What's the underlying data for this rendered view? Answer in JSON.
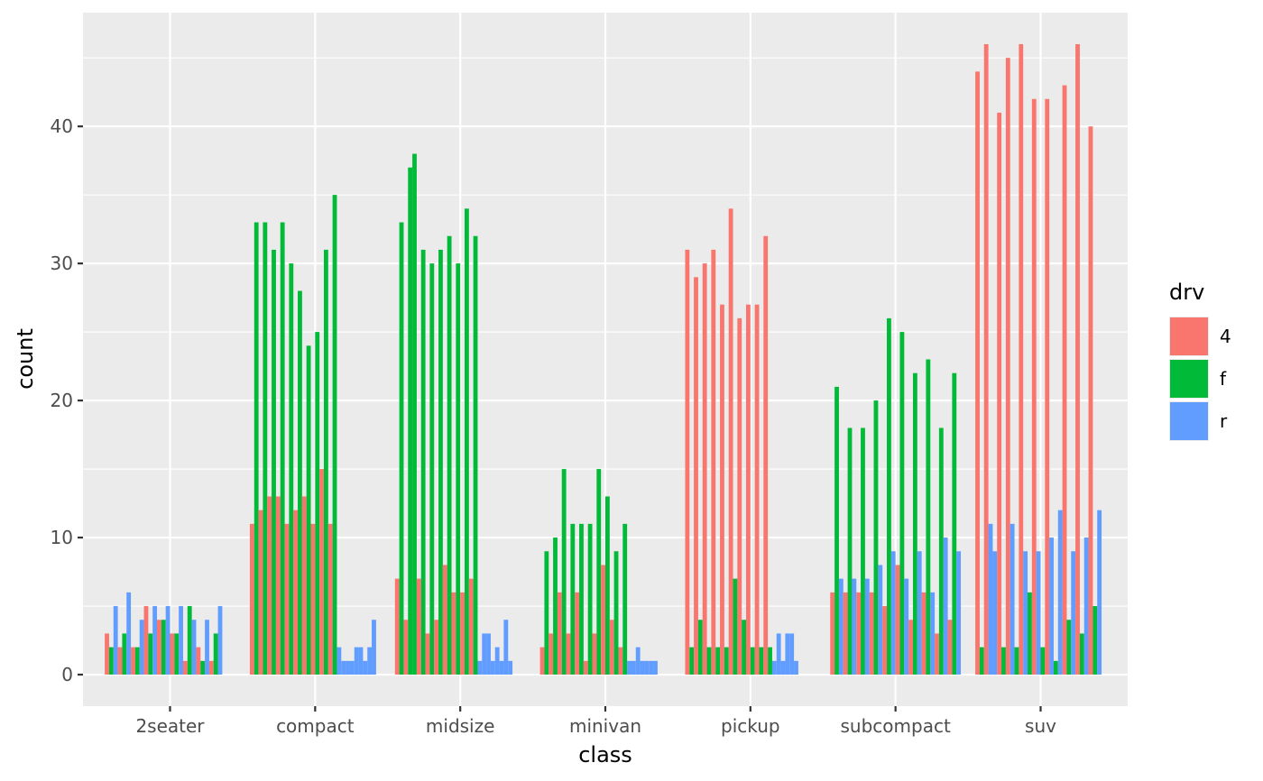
{
  "chart_data": {
    "type": "bar",
    "xlabel": "class",
    "ylabel": "count",
    "ylim": [
      -2.3,
      48.3
    ],
    "y_ticks": [
      0,
      10,
      20,
      30,
      40
    ],
    "grid": true,
    "legend_placement": "right",
    "legend": {
      "title": "drv",
      "entries": [
        {
          "key": "4",
          "color": "#F8766D"
        },
        {
          "key": "f",
          "color": "#00BA38"
        },
        {
          "key": "r",
          "color": "#619CFF"
        }
      ]
    },
    "categories": [
      "2seater",
      "compact",
      "midsize",
      "minivan",
      "pickup",
      "subcompact",
      "suv"
    ],
    "bars_per_category": 30,
    "groups": [
      {
        "category": "2seater",
        "bars": [
          {
            "drv": "4",
            "value": 3
          },
          {
            "drv": "f",
            "value": 2
          },
          {
            "drv": "r",
            "value": 5
          },
          {
            "drv": "4",
            "value": 2
          },
          {
            "drv": "f",
            "value": 3
          },
          {
            "drv": "r",
            "value": 6
          },
          {
            "drv": "4",
            "value": 2
          },
          {
            "drv": "f",
            "value": 2
          },
          {
            "drv": "r",
            "value": 4
          },
          {
            "drv": "4",
            "value": 5
          },
          {
            "drv": "f",
            "value": 3
          },
          {
            "drv": "r",
            "value": 5
          },
          {
            "drv": "4",
            "value": 4
          },
          {
            "drv": "f",
            "value": 4
          },
          {
            "drv": "r",
            "value": 5
          },
          {
            "drv": "4",
            "value": 3
          },
          {
            "drv": "f",
            "value": 3
          },
          {
            "drv": "r",
            "value": 5
          },
          {
            "drv": "4",
            "value": 1
          },
          {
            "drv": "f",
            "value": 5
          },
          {
            "drv": "r",
            "value": 4
          },
          {
            "drv": "4",
            "value": 2
          },
          {
            "drv": "f",
            "value": 1
          },
          {
            "drv": "r",
            "value": 4
          },
          {
            "drv": "4",
            "value": 1
          },
          {
            "drv": "f",
            "value": 3
          },
          {
            "drv": "r",
            "value": 5
          }
        ]
      },
      {
        "category": "compact",
        "bars": [
          {
            "drv": "4",
            "value": 11
          },
          {
            "drv": "f",
            "value": 33
          },
          {
            "drv": "4",
            "value": 12
          },
          {
            "drv": "f",
            "value": 33
          },
          {
            "drv": "4",
            "value": 13
          },
          {
            "drv": "f",
            "value": 31
          },
          {
            "drv": "4",
            "value": 13
          },
          {
            "drv": "f",
            "value": 33
          },
          {
            "drv": "4",
            "value": 11
          },
          {
            "drv": "f",
            "value": 30
          },
          {
            "drv": "4",
            "value": 12
          },
          {
            "drv": "f",
            "value": 28
          },
          {
            "drv": "4",
            "value": 13
          },
          {
            "drv": "f",
            "value": 24
          },
          {
            "drv": "4",
            "value": 11
          },
          {
            "drv": "f",
            "value": 25
          },
          {
            "drv": "4",
            "value": 15
          },
          {
            "drv": "f",
            "value": 31
          },
          {
            "drv": "4",
            "value": 11
          },
          {
            "drv": "f",
            "value": 35
          },
          {
            "drv": "r",
            "value": 2
          },
          {
            "drv": "r",
            "value": 1
          },
          {
            "drv": "r",
            "value": 1
          },
          {
            "drv": "r",
            "value": 1
          },
          {
            "drv": "r",
            "value": 2
          },
          {
            "drv": "r",
            "value": 2
          },
          {
            "drv": "r",
            "value": 1
          },
          {
            "drv": "r",
            "value": 2
          },
          {
            "drv": "r",
            "value": 4
          }
        ]
      },
      {
        "category": "midsize",
        "bars": [
          {
            "drv": "4",
            "value": 7
          },
          {
            "drv": "f",
            "value": 33
          },
          {
            "drv": "4",
            "value": 4
          },
          {
            "drv": "f",
            "value": 37
          },
          {
            "drv": "f",
            "value": 38
          },
          {
            "drv": "4",
            "value": 7
          },
          {
            "drv": "f",
            "value": 31
          },
          {
            "drv": "4",
            "value": 3
          },
          {
            "drv": "f",
            "value": 30
          },
          {
            "drv": "4",
            "value": 4
          },
          {
            "drv": "f",
            "value": 31
          },
          {
            "drv": "4",
            "value": 8
          },
          {
            "drv": "f",
            "value": 32
          },
          {
            "drv": "4",
            "value": 6
          },
          {
            "drv": "f",
            "value": 30
          },
          {
            "drv": "4",
            "value": 6
          },
          {
            "drv": "f",
            "value": 34
          },
          {
            "drv": "4",
            "value": 7
          },
          {
            "drv": "f",
            "value": 32
          },
          {
            "drv": "r",
            "value": 1
          },
          {
            "drv": "r",
            "value": 3
          },
          {
            "drv": "r",
            "value": 3
          },
          {
            "drv": "r",
            "value": 1
          },
          {
            "drv": "r",
            "value": 2
          },
          {
            "drv": "r",
            "value": 1
          },
          {
            "drv": "r",
            "value": 4
          },
          {
            "drv": "r",
            "value": 1
          }
        ]
      },
      {
        "category": "minivan",
        "bars": [
          {
            "drv": "4",
            "value": 2
          },
          {
            "drv": "f",
            "value": 9
          },
          {
            "drv": "4",
            "value": 3
          },
          {
            "drv": "f",
            "value": 10
          },
          {
            "drv": "4",
            "value": 6
          },
          {
            "drv": "f",
            "value": 15
          },
          {
            "drv": "4",
            "value": 3
          },
          {
            "drv": "f",
            "value": 11
          },
          {
            "drv": "4",
            "value": 6
          },
          {
            "drv": "f",
            "value": 11
          },
          {
            "drv": "4",
            "value": 1
          },
          {
            "drv": "f",
            "value": 11
          },
          {
            "drv": "4",
            "value": 3
          },
          {
            "drv": "f",
            "value": 15
          },
          {
            "drv": "4",
            "value": 8
          },
          {
            "drv": "f",
            "value": 13
          },
          {
            "drv": "4",
            "value": 4
          },
          {
            "drv": "f",
            "value": 9
          },
          {
            "drv": "4",
            "value": 2
          },
          {
            "drv": "f",
            "value": 11
          },
          {
            "drv": "r",
            "value": 1
          },
          {
            "drv": "r",
            "value": 1
          },
          {
            "drv": "r",
            "value": 2
          },
          {
            "drv": "r",
            "value": 1
          },
          {
            "drv": "r",
            "value": 1
          },
          {
            "drv": "r",
            "value": 1
          },
          {
            "drv": "r",
            "value": 1
          }
        ]
      },
      {
        "category": "pickup",
        "bars": [
          {
            "drv": "4",
            "value": 31
          },
          {
            "drv": "f",
            "value": 2
          },
          {
            "drv": "4",
            "value": 29
          },
          {
            "drv": "f",
            "value": 4
          },
          {
            "drv": "4",
            "value": 30
          },
          {
            "drv": "f",
            "value": 2
          },
          {
            "drv": "4",
            "value": 31
          },
          {
            "drv": "f",
            "value": 2
          },
          {
            "drv": "4",
            "value": 27
          },
          {
            "drv": "f",
            "value": 2
          },
          {
            "drv": "4",
            "value": 34
          },
          {
            "drv": "f",
            "value": 7
          },
          {
            "drv": "4",
            "value": 26
          },
          {
            "drv": "f",
            "value": 4
          },
          {
            "drv": "4",
            "value": 27
          },
          {
            "drv": "f",
            "value": 2
          },
          {
            "drv": "4",
            "value": 27
          },
          {
            "drv": "f",
            "value": 2
          },
          {
            "drv": "4",
            "value": 32
          },
          {
            "drv": "f",
            "value": 2
          },
          {
            "drv": "r",
            "value": 1
          },
          {
            "drv": "r",
            "value": 3
          },
          {
            "drv": "r",
            "value": 1
          },
          {
            "drv": "r",
            "value": 3
          },
          {
            "drv": "r",
            "value": 3
          },
          {
            "drv": "r",
            "value": 1
          }
        ]
      },
      {
        "category": "subcompact",
        "bars": [
          {
            "drv": "4",
            "value": 6
          },
          {
            "drv": "f",
            "value": 21
          },
          {
            "drv": "r",
            "value": 7
          },
          {
            "drv": "4",
            "value": 6
          },
          {
            "drv": "f",
            "value": 18
          },
          {
            "drv": "r",
            "value": 7
          },
          {
            "drv": "4",
            "value": 6
          },
          {
            "drv": "f",
            "value": 18
          },
          {
            "drv": "r",
            "value": 7
          },
          {
            "drv": "4",
            "value": 6
          },
          {
            "drv": "f",
            "value": 20
          },
          {
            "drv": "r",
            "value": 8
          },
          {
            "drv": "4",
            "value": 5
          },
          {
            "drv": "f",
            "value": 26
          },
          {
            "drv": "r",
            "value": 9
          },
          {
            "drv": "4",
            "value": 8
          },
          {
            "drv": "f",
            "value": 25
          },
          {
            "drv": "r",
            "value": 7
          },
          {
            "drv": "4",
            "value": 4
          },
          {
            "drv": "f",
            "value": 22
          },
          {
            "drv": "r",
            "value": 9
          },
          {
            "drv": "4",
            "value": 6
          },
          {
            "drv": "f",
            "value": 23
          },
          {
            "drv": "r",
            "value": 6
          },
          {
            "drv": "4",
            "value": 3
          },
          {
            "drv": "f",
            "value": 18
          },
          {
            "drv": "r",
            "value": 10
          },
          {
            "drv": "4",
            "value": 4
          },
          {
            "drv": "f",
            "value": 22
          },
          {
            "drv": "r",
            "value": 9
          }
        ]
      },
      {
        "category": "suv",
        "bars": [
          {
            "drv": "4",
            "value": 44
          },
          {
            "drv": "f",
            "value": 2
          },
          {
            "drv": "4",
            "value": 46
          },
          {
            "drv": "r",
            "value": 11
          },
          {
            "drv": "r",
            "value": 9
          },
          {
            "drv": "4",
            "value": 41
          },
          {
            "drv": "f",
            "value": 2
          },
          {
            "drv": "4",
            "value": 45
          },
          {
            "drv": "r",
            "value": 11
          },
          {
            "drv": "f",
            "value": 2
          },
          {
            "drv": "4",
            "value": 46
          },
          {
            "drv": "r",
            "value": 9
          },
          {
            "drv": "f",
            "value": 6
          },
          {
            "drv": "4",
            "value": 42
          },
          {
            "drv": "r",
            "value": 9
          },
          {
            "drv": "f",
            "value": 2
          },
          {
            "drv": "4",
            "value": 42
          },
          {
            "drv": "r",
            "value": 10
          },
          {
            "drv": "f",
            "value": 1
          },
          {
            "drv": "r",
            "value": 12
          },
          {
            "drv": "4",
            "value": 43
          },
          {
            "drv": "f",
            "value": 4
          },
          {
            "drv": "r",
            "value": 9
          },
          {
            "drv": "4",
            "value": 46
          },
          {
            "drv": "f",
            "value": 3
          },
          {
            "drv": "r",
            "value": 10
          },
          {
            "drv": "4",
            "value": 40
          },
          {
            "drv": "f",
            "value": 5
          },
          {
            "drv": "r",
            "value": 12
          }
        ]
      }
    ]
  }
}
